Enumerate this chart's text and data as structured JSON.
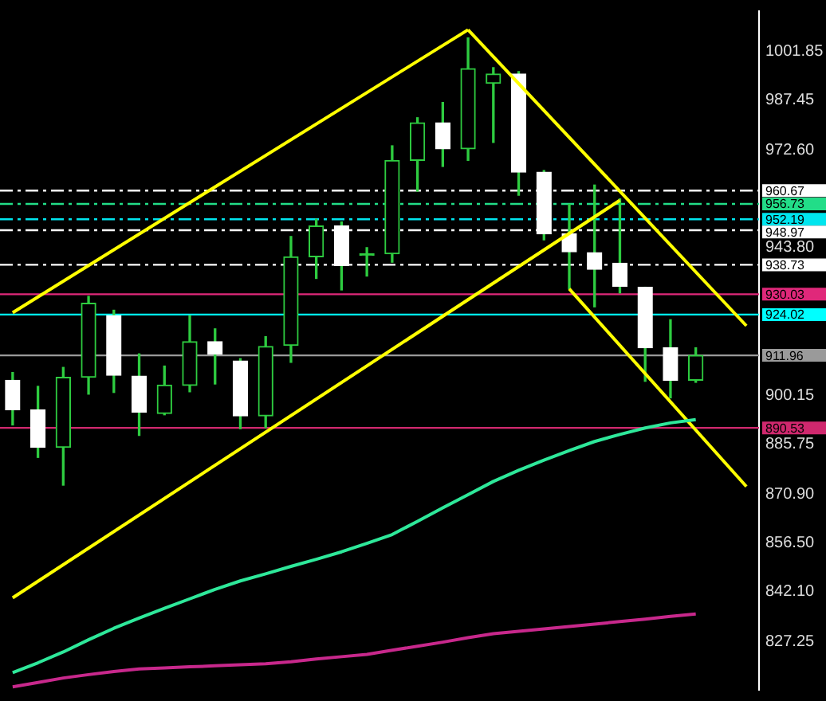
{
  "chart_data": {
    "type": "candlestick",
    "categories": [
      null,
      null,
      null,
      null,
      null,
      null,
      null,
      null,
      null,
      null,
      null,
      null,
      null,
      null,
      null,
      null,
      null,
      null,
      null,
      null,
      null,
      null,
      null,
      null,
      null,
      null,
      null,
      null,
      null,
      null
    ],
    "ohlc": [
      [
        904.6,
        906.9,
        891.4,
        895.9
      ],
      [
        895.9,
        902.8,
        881.8,
        884.8
      ],
      [
        884.8,
        908.4,
        873.6,
        905.5
      ],
      [
        905.5,
        929.4,
        900.5,
        927.4
      ],
      [
        923.7,
        925.3,
        901.0,
        906.1
      ],
      [
        905.8,
        912.4,
        888.3,
        895.2
      ],
      [
        894.8,
        908.8,
        894.4,
        903.2
      ],
      [
        903.1,
        923.7,
        901.2,
        916.0
      ],
      [
        916.0,
        919.8,
        903.5,
        912.4
      ],
      [
        910.3,
        911.0,
        890.3,
        894.1
      ],
      [
        894.1,
        917.5,
        890.6,
        914.6
      ],
      [
        914.9,
        947.1,
        909.9,
        941.1
      ],
      [
        941.1,
        952.2,
        934.7,
        950.2
      ],
      [
        950.2,
        951.4,
        931.3,
        938.5
      ],
      [
        941.5,
        943.8,
        935.4,
        941.5
      ],
      [
        942.0,
        973.9,
        939.5,
        969.6
      ],
      [
        969.6,
        982.2,
        960.5,
        980.7
      ],
      [
        980.7,
        986.7,
        967.8,
        973.0
      ],
      [
        973.0,
        1005.8,
        969.6,
        996.7
      ],
      [
        992.4,
        997.0,
        974.9,
        995.1
      ],
      [
        995.1,
        995.8,
        959.3,
        966.1
      ],
      [
        966.1,
        966.6,
        946.1,
        947.9
      ],
      [
        947.9,
        956.6,
        931.6,
        942.6
      ],
      [
        942.3,
        962.3,
        926.3,
        937.4
      ],
      [
        939.2,
        958.2,
        930.4,
        932.4
      ],
      [
        932.1,
        932.1,
        904.3,
        914.2
      ],
      [
        914.2,
        922.5,
        899.4,
        904.6
      ],
      [
        904.6,
        914.2,
        904.0,
        911.96
      ],
      null,
      null
    ],
    "color": "#2ecc40",
    "colors": [
      "#ffffff",
      "#ffffff",
      "#2ecc40",
      "#2ecc40",
      "#ffffff",
      "#ffffff",
      "#2ecc40",
      "#2ecc40",
      "#ffffff",
      "#ffffff",
      "#2ecc40",
      "#2ecc40",
      "#2ecc40",
      "#ffffff",
      "#2ecc40",
      "#2ecc40",
      "#2ecc40",
      "#ffffff",
      "#2ecc40",
      "#2ecc40",
      "#ffffff",
      "#ffffff",
      "#ffffff",
      "#ffffff",
      "#ffffff",
      "#ffffff",
      "#ffffff",
      "#2ecc40",
      null,
      null
    ],
    "series": [
      {
        "type": "line",
        "color": "#2ee89a",
        "values": [
          818.2,
          821.1,
          824.3,
          827.9,
          831.3,
          834.3,
          837.2,
          840.0,
          842.8,
          845.3,
          847.4,
          849.6,
          851.7,
          853.9,
          856.4,
          859.0,
          862.9,
          866.9,
          870.8,
          874.7,
          878.0,
          881.0,
          883.8,
          886.5,
          888.6,
          890.5,
          892.0,
          893.0,
          null,
          null
        ]
      },
      {
        "type": "line",
        "color": "#c8288c",
        "values": [
          814.0,
          815.3,
          816.6,
          817.6,
          818.5,
          819.3,
          819.6,
          819.9,
          820.2,
          820.5,
          820.8,
          821.4,
          822.2,
          822.9,
          823.6,
          824.8,
          826.0,
          827.2,
          828.5,
          829.7,
          830.4,
          831.1,
          831.8,
          832.5,
          833.3,
          834.0,
          834.8,
          835.5,
          null,
          null
        ]
      },
      {
        "type": "line",
        "color": "#ffff00",
        "values": [
          924.6,
          null,
          null,
          null,
          null,
          null,
          null,
          null,
          null,
          null,
          null,
          null,
          null,
          null,
          null,
          null,
          null,
          null,
          1008.2,
          null,
          null,
          null,
          null,
          null,
          null,
          null,
          null,
          null,
          null,
          null
        ]
      },
      {
        "type": "line",
        "color": "#ffff00",
        "values": [
          840.3,
          null,
          null,
          null,
          null,
          null,
          null,
          null,
          null,
          null,
          null,
          null,
          null,
          null,
          null,
          null,
          null,
          null,
          null,
          null,
          null,
          null,
          null,
          null,
          957.8,
          null,
          null,
          null,
          null,
          null
        ]
      },
      {
        "type": "line",
        "color": "#ffff00",
        "values": [
          null,
          null,
          null,
          null,
          null,
          null,
          null,
          null,
          null,
          null,
          null,
          null,
          null,
          null,
          null,
          null,
          null,
          null,
          1008.2,
          null,
          null,
          null,
          null,
          null,
          null,
          null,
          null,
          null,
          null,
          920.7
        ]
      },
      {
        "type": "line",
        "color": "#ffff00",
        "values": [
          null,
          null,
          null,
          null,
          null,
          null,
          null,
          null,
          null,
          null,
          null,
          null,
          null,
          null,
          null,
          null,
          null,
          null,
          null,
          null,
          null,
          null,
          931.6,
          null,
          null,
          null,
          null,
          null,
          null,
          873.2
        ]
      }
    ],
    "ylim": [
      813.1,
      1013.7
    ],
    "yticks": [
      1001.85,
      987.45,
      {
        "value": 972.6,
        "label": "972.60"
      },
      {
        "value": 943.8,
        "label": "943.80"
      },
      900.15,
      885.75,
      {
        "value": 870.9,
        "label": "870.90"
      },
      {
        "value": 856.5,
        "label": "856.50"
      },
      {
        "value": 842.1,
        "label": "842.10"
      },
      827.25
    ],
    "tick_labels": "y",
    "ref_lines": [
      {
        "axis": "y",
        "value": 960.67,
        "label": "960.67",
        "color": "#ffffff",
        "line_style": "dashed"
      },
      {
        "axis": "y",
        "value": 956.73,
        "label": "956.73",
        "color": "#22dd88",
        "line_style": "dashed"
      },
      {
        "axis": "y",
        "value": 952.19,
        "label": "952.19",
        "color": "#00e5ee",
        "line_style": "dashed"
      },
      {
        "axis": "y",
        "value": 948.97,
        "label": "948.97",
        "color": "#ffffff",
        "line_style": "dashed"
      },
      {
        "axis": "y",
        "value": 938.73,
        "label": "938.73",
        "color": "#ffffff",
        "line_style": "dashed"
      },
      {
        "axis": "y",
        "value": 930.03,
        "label": "930.03",
        "color": "#e0287a",
        "line_style": "solid"
      },
      {
        "axis": "y",
        "value": 924.02,
        "label": "924.02",
        "color": "#00ffff",
        "line_style": "solid"
      },
      {
        "axis": "y",
        "value": 911.96,
        "label": "911.96",
        "color": "#9a9a9a",
        "line_style": "solid"
      },
      {
        "axis": "y",
        "value": 890.53,
        "label": "890.53",
        "color": "#d0286e",
        "line_style": "solid"
      }
    ]
  }
}
